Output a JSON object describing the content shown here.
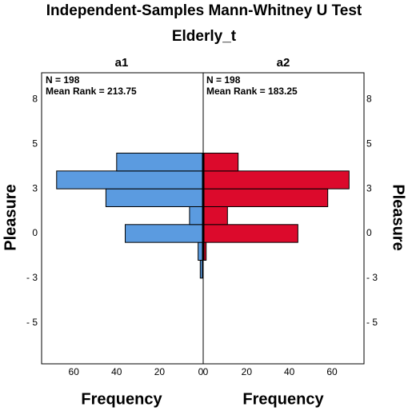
{
  "chart_data": {
    "type": "histogram",
    "orientation": "horizontal",
    "title": "Independent-Samples Mann-Whitney U Test",
    "subtitle": "Elderly_t",
    "y_label": "Pleasure",
    "x_label": "Frequency",
    "bins": [
      -2.5,
      -1.5,
      -0.5,
      0.5,
      1.5,
      2.5,
      3.5,
      4.5
    ],
    "ylim": [
      -7.3,
      9
    ],
    "yticks": [
      {
        "value": 7.5,
        "label": "8"
      },
      5,
      {
        "value": 2.5,
        "label": "3"
      },
      0,
      {
        "value": -2.5,
        "label": "- 3"
      },
      {
        "value": -5,
        "label": "- 5"
      }
    ],
    "xlim": [
      0,
      75
    ],
    "xticks": [
      0,
      20,
      40,
      60
    ],
    "series": [
      {
        "name": "a1",
        "color": "#5b9be0",
        "values": [
          1,
          2,
          36,
          6,
          45,
          68,
          40
        ],
        "annotations": [
          "N = 198",
          "Mean Rank = 213.75"
        ]
      },
      {
        "name": "a2",
        "color": "#dc0a2c",
        "values": [
          0,
          1,
          44,
          11,
          58,
          68,
          16
        ],
        "annotations": [
          "N = 198",
          "Mean Rank = 183.25"
        ]
      }
    ]
  }
}
